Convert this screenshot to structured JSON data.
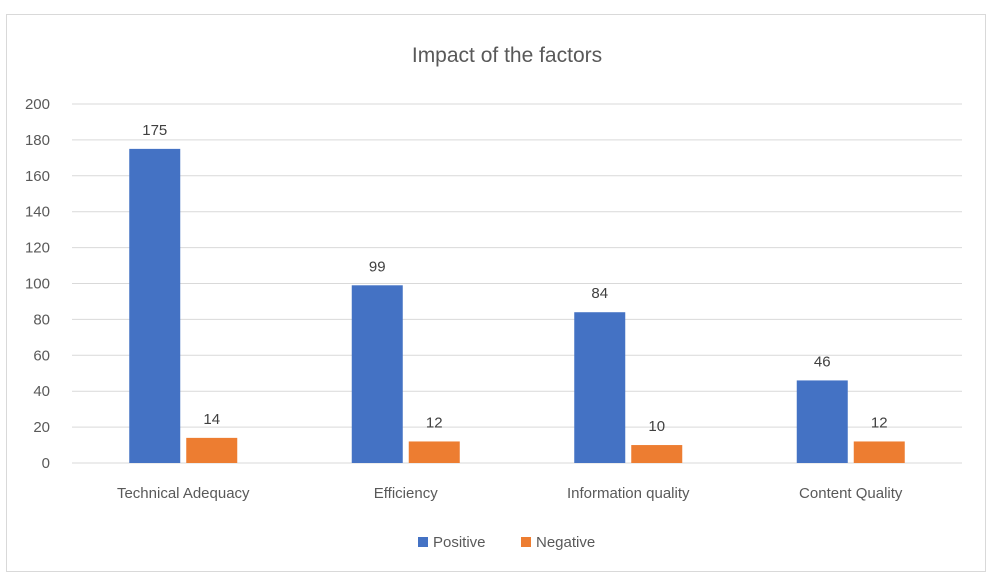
{
  "chart_data": {
    "type": "bar",
    "title": "Impact of the factors",
    "categories": [
      "Technical Adequacy",
      "Efficiency",
      "Information quality",
      "Content Quality"
    ],
    "series": [
      {
        "name": "Positive",
        "values": [
          175,
          99,
          84,
          46
        ],
        "color": "#4472C4"
      },
      {
        "name": "Negative",
        "values": [
          14,
          12,
          10,
          12
        ],
        "color": "#ED7D31"
      }
    ],
    "ylim": [
      0,
      200
    ],
    "yticks": [
      0,
      20,
      40,
      60,
      80,
      100,
      120,
      140,
      160,
      180,
      200
    ],
    "grid": true,
    "legend_position": "bottom",
    "data_labels": true
  }
}
